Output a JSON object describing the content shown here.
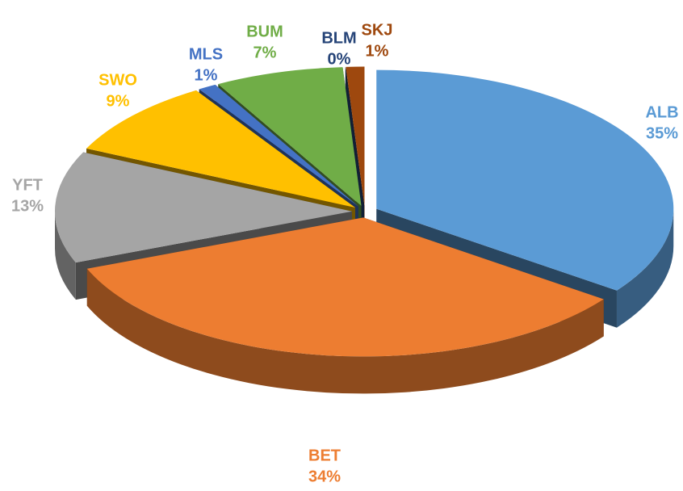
{
  "chart_data": {
    "type": "pie",
    "categories": [
      "ALB",
      "BET",
      "YFT",
      "SWO",
      "MLS",
      "BUM",
      "BLM",
      "SKJ"
    ],
    "values": [
      35,
      34,
      13,
      9,
      1,
      7,
      0,
      1
    ],
    "value_labels": [
      "35%",
      "34%",
      "13%",
      "9%",
      "1%",
      "7%",
      "0%",
      "1%"
    ],
    "colors": [
      "#5b9bd5",
      "#ed7d31",
      "#a5a5a5",
      "#ffc000",
      "#4472c4",
      "#70ad47",
      "#264478",
      "#9e480e"
    ]
  }
}
